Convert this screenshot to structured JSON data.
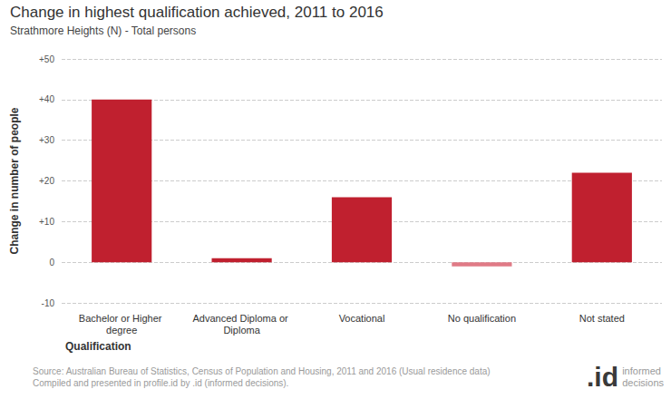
{
  "chart_data": {
    "type": "bar",
    "title": "Change in highest qualification achieved, 2011 to 2016",
    "subtitle": "Strathmore Heights (N) - Total persons",
    "x_label": "Qualification",
    "y_label": "Change in number of people",
    "categories": [
      "Bachelor or Higher degree",
      "Advanced Diploma or Diploma",
      "Vocational",
      "No qualification",
      "Not stated"
    ],
    "values": [
      40,
      1,
      16,
      -1,
      22
    ],
    "colors": [
      "#c0202f",
      "#c0202f",
      "#c0202f",
      "#e07a86",
      "#c0202f"
    ],
    "ylim": [
      -10,
      50
    ],
    "yticks": [
      -10,
      0,
      {
        "value": 10,
        "label": "+10"
      },
      {
        "value": 20,
        "label": "+20"
      },
      {
        "value": 30,
        "label": "+30"
      },
      {
        "value": 40,
        "label": "+40"
      },
      {
        "value": 50,
        "label": "+50"
      }
    ],
    "grid": true,
    "source": [
      "Source: Australian Bureau of Statistics, Census of Population and Housing, 2011 and 2016 (Usual residence data)",
      "Compiled and presented in profile.id by .id (informed decisions)."
    ],
    "logo": [
      ".id",
      "informed decisions"
    ]
  }
}
